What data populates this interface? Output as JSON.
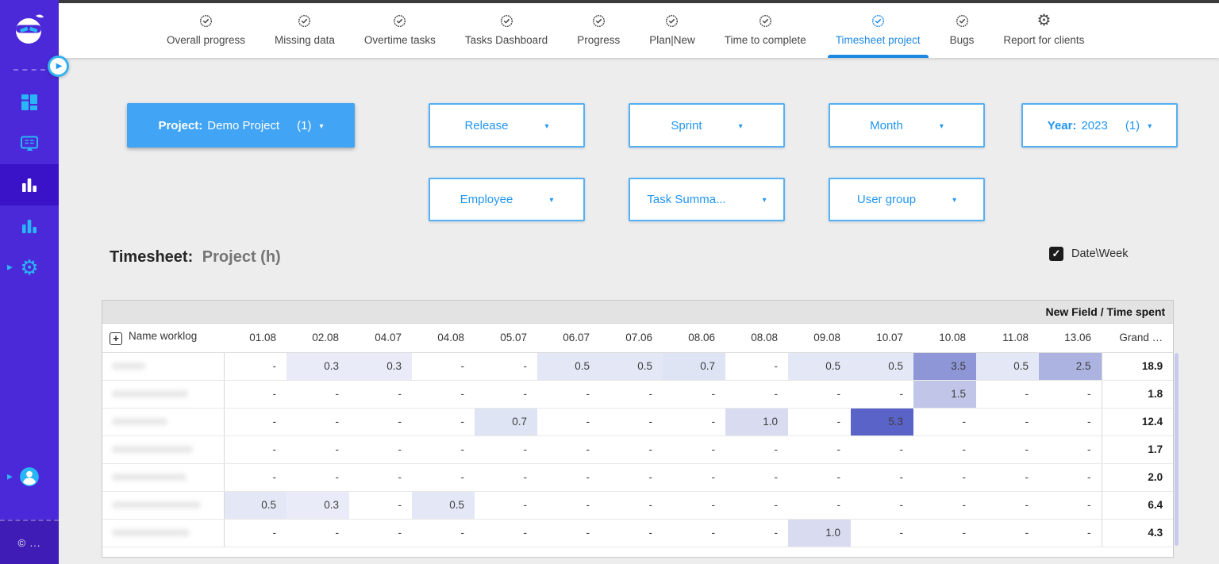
{
  "colors": {
    "sidebar_bg": "#4b29d8",
    "sidebar_active_bg": "#3a13c9",
    "icon_cyan": "#29b6f6",
    "tab_active": "#1e88e5",
    "filter_filled_bg": "#42a4f5",
    "filter_outline_border": "#56b0f5",
    "filter_text_blue": "#2196f3",
    "heat_max": "#5a63c8"
  },
  "sidebar": {
    "items": [
      {
        "name": "boards",
        "icon": "grid-icon",
        "active": false
      },
      {
        "name": "screens",
        "icon": "monitor-icon",
        "active": false
      },
      {
        "name": "reports",
        "icon": "bar-chart-icon",
        "active": true
      },
      {
        "name": "charts",
        "icon": "bar-chart-icon",
        "active": false
      },
      {
        "name": "settings",
        "icon": "gear-icon",
        "active": false,
        "expander": true
      }
    ],
    "user_item": {
      "name": "account",
      "icon": "person-icon",
      "expander": true
    },
    "footer_text": "© ..."
  },
  "topnav": {
    "tabs": [
      {
        "label": "Overall progress",
        "icon": "badge-check-icon",
        "active": false
      },
      {
        "label": "Missing data",
        "icon": "badge-check-icon",
        "active": false
      },
      {
        "label": "Overtime tasks",
        "icon": "badge-check-icon",
        "active": false
      },
      {
        "label": "Tasks Dashboard",
        "icon": "badge-check-icon",
        "active": false
      },
      {
        "label": "Progress",
        "icon": "badge-check-icon",
        "active": false
      },
      {
        "label": "Plan|New",
        "icon": "badge-check-icon",
        "active": false
      },
      {
        "label": "Time to complete",
        "icon": "badge-check-icon",
        "active": false
      },
      {
        "label": "Timesheet project",
        "icon": "badge-check-icon",
        "active": true
      },
      {
        "label": "Bugs",
        "icon": "badge-check-icon",
        "active": false
      },
      {
        "label": "Report for clients",
        "icon": "gear-icon",
        "active": false
      }
    ]
  },
  "filters": {
    "row1": [
      {
        "style": "filled",
        "prefix": "Project:",
        "value": "Demo Project",
        "count": "(1)"
      },
      {
        "style": "outline",
        "label": "Release"
      },
      {
        "style": "outline",
        "label": "Sprint"
      },
      {
        "style": "outline",
        "label": "Month"
      },
      {
        "style": "outline",
        "prefix": "Year:",
        "value": "2023",
        "count": "(1)"
      }
    ],
    "row2": [
      {
        "style": "outline",
        "label": "Employee"
      },
      {
        "style": "outline",
        "label": "Task Summa..."
      },
      {
        "style": "outline",
        "label": "User group"
      }
    ]
  },
  "section": {
    "title_label": "Timesheet:",
    "title_value": "Project (h)",
    "toggle_label": "Date\\Week",
    "toggle_checked": true
  },
  "table": {
    "group_header": "New Field / Time spent",
    "name_column_header": "Name worklog",
    "expand_button": "+",
    "date_columns": [
      "01.08",
      "02.08",
      "04.07",
      "04.08",
      "05.07",
      "06.07",
      "07.06",
      "08.06",
      "08.08",
      "09.08",
      "10.07",
      "10.08",
      "11.08",
      "13.06"
    ],
    "grand_column_header": "Grand …",
    "rows": [
      {
        "name": "",
        "values": [
          "-",
          "0.3",
          "0.3",
          "-",
          "-",
          "0.5",
          "0.5",
          "0.7",
          "-",
          "0.5",
          "0.5",
          "3.5",
          "0.5",
          "2.5"
        ],
        "grand": "18.9"
      },
      {
        "name": "",
        "values": [
          "-",
          "-",
          "-",
          "-",
          "-",
          "-",
          "-",
          "-",
          "-",
          "-",
          "-",
          "1.5",
          "-",
          "-"
        ],
        "grand": "1.8"
      },
      {
        "name": "",
        "values": [
          "-",
          "-",
          "-",
          "-",
          "0.7",
          "-",
          "-",
          "-",
          "1.0",
          "-",
          "5.3",
          "-",
          "-",
          "-"
        ],
        "grand": "12.4"
      },
      {
        "name": "",
        "values": [
          "-",
          "-",
          "-",
          "-",
          "-",
          "-",
          "-",
          "-",
          "-",
          "-",
          "-",
          "-",
          "-",
          "-"
        ],
        "grand": "1.7"
      },
      {
        "name": "",
        "values": [
          "-",
          "-",
          "-",
          "-",
          "-",
          "-",
          "-",
          "-",
          "-",
          "-",
          "-",
          "-",
          "-",
          "-"
        ],
        "grand": "2.0"
      },
      {
        "name": "",
        "values": [
          "0.5",
          "0.3",
          "-",
          "0.5",
          "-",
          "-",
          "-",
          "-",
          "-",
          "-",
          "-",
          "-",
          "-",
          "-"
        ],
        "grand": "6.4"
      },
      {
        "name": "",
        "values": [
          "-",
          "-",
          "-",
          "-",
          "-",
          "-",
          "-",
          "-",
          "-",
          "1.0",
          "-",
          "-",
          "-",
          "-"
        ],
        "grand": "4.3"
      }
    ],
    "heat_colors": {
      "0.3": "#e9ecf8",
      "0.5": "#e4e8f6",
      "0.7": "#dfe4f4",
      "1.0": "#d9dcf1",
      "1.5": "#c1c6e9",
      "2.5": "#adb3e1",
      "3.5": "#8e96d7",
      "5.3": "#5a63c8"
    }
  }
}
